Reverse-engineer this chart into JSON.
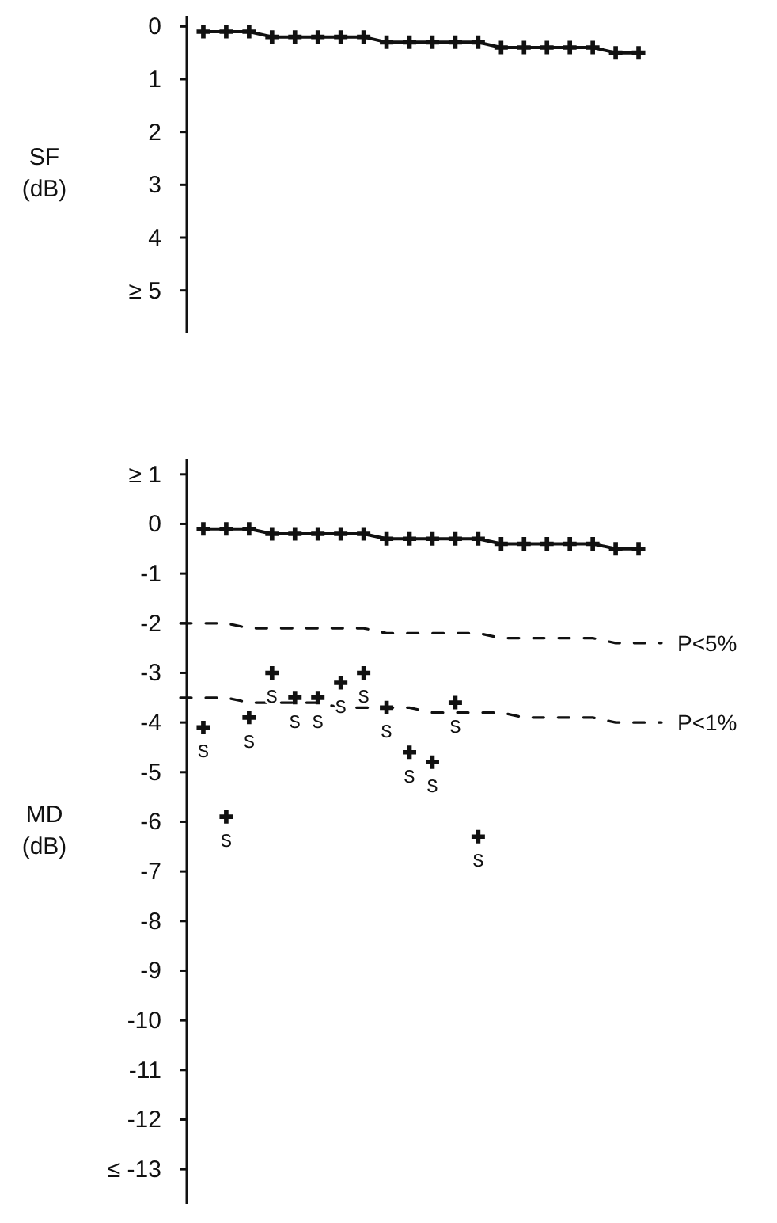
{
  "chart_data": [
    {
      "type": "line",
      "ylabel": "SF (dB)",
      "ylim": [
        5.8,
        -0.2
      ],
      "yticks": [
        0,
        1,
        2,
        3,
        4,
        {
          "value": 5,
          "label": "≥ 5"
        }
      ],
      "tick_labels": "y",
      "categories": [
        null,
        null,
        null,
        null,
        null,
        null,
        null,
        null,
        null,
        null,
        null,
        null,
        null,
        null,
        null,
        null,
        null,
        null,
        null,
        null,
        null,
        null
      ],
      "series": [
        {
          "type": "line",
          "color": "#111111",
          "marker": "cross",
          "line_style": "solid",
          "values": [
            null,
            0.1,
            0.1,
            0.1,
            0.2,
            0.2,
            0.2,
            0.2,
            0.2,
            0.3,
            0.3,
            0.3,
            0.3,
            0.3,
            0.4,
            0.4,
            0.4,
            0.4,
            0.4,
            0.5,
            0.5,
            null
          ]
        }
      ]
    },
    {
      "type": "line",
      "ylabel": "MD (dB)",
      "ylim": [
        -13.7,
        1.3
      ],
      "yticks": [
        {
          "value": 1,
          "label": "≥ 1"
        },
        0,
        -1,
        -2,
        -3,
        -4,
        -5,
        -6,
        -7,
        -8,
        -9,
        -10,
        -11,
        -12,
        {
          "value": -13,
          "label": "≤ -13"
        }
      ],
      "tick_labels": "y",
      "categories": [
        null,
        null,
        null,
        null,
        null,
        null,
        null,
        null,
        null,
        null,
        null,
        null,
        null,
        null,
        null,
        null,
        null,
        null,
        null,
        null,
        null,
        null
      ],
      "series": [
        {
          "type": "line",
          "color": "#111111",
          "marker": "cross",
          "line_style": "solid",
          "values": [
            null,
            -0.1,
            -0.1,
            -0.1,
            -0.2,
            -0.2,
            -0.2,
            -0.2,
            -0.2,
            -0.3,
            -0.3,
            -0.3,
            -0.3,
            -0.3,
            -0.4,
            -0.4,
            -0.4,
            -0.4,
            -0.4,
            -0.5,
            -0.5,
            null
          ]
        },
        {
          "type": "line",
          "name": "P<5%",
          "color": "#111111",
          "marker": "none",
          "line_style": "dashed",
          "values": [
            -2,
            -2,
            -2,
            -2.1,
            -2.1,
            -2.1,
            -2.1,
            -2.1,
            -2.1,
            -2.2,
            -2.2,
            -2.2,
            -2.2,
            -2.2,
            -2.3,
            -2.3,
            -2.3,
            -2.3,
            -2.3,
            -2.4,
            -2.4,
            -2.4
          ]
        },
        {
          "type": "line",
          "name": "P<1%",
          "color": "#111111",
          "marker": "none",
          "line_style": "dashed",
          "values": [
            -3.5,
            -3.5,
            -3.5,
            -3.6,
            -3.6,
            -3.6,
            -3.6,
            -3.7,
            -3.7,
            -3.7,
            -3.7,
            -3.8,
            -3.8,
            -3.8,
            -3.8,
            -3.9,
            -3.9,
            -3.9,
            -3.9,
            -4,
            -4,
            -4
          ]
        },
        {
          "type": "scatter",
          "color": "#111111",
          "marker": "cross",
          "values": [
            null,
            -4.1,
            -5.9,
            -3.9,
            -3,
            -3.5,
            -3.5,
            -3.2,
            -3,
            -3.7,
            -4.6,
            -4.8,
            -3.6,
            -6.3,
            null,
            null,
            null,
            null,
            null,
            null,
            null,
            null
          ],
          "value_labels": [
            null,
            "S",
            "S",
            "S",
            "S",
            "S",
            "S",
            "S",
            "S",
            "S",
            "S",
            "S",
            "S",
            "S",
            null,
            null,
            null,
            null,
            null,
            null,
            null,
            null
          ]
        }
      ]
    }
  ]
}
